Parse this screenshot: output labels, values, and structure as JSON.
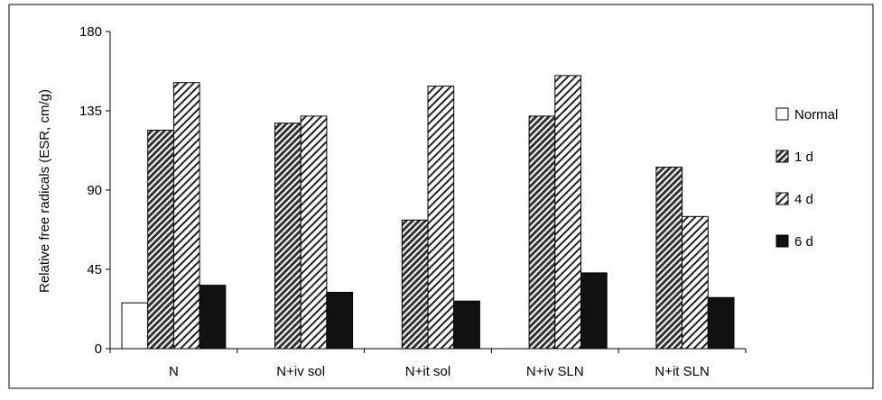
{
  "chart_data": {
    "type": "bar",
    "ylabel": "Relative free radicals (ESR, cm/g)",
    "xlabel": "",
    "ylim": [
      0,
      180
    ],
    "yticks": [
      0,
      45,
      90,
      135,
      180
    ],
    "grid": false,
    "legend_position": "right",
    "categories": [
      "N",
      "N+iv sol",
      "N+it sol",
      "N+iv SLN",
      "N+it SLN"
    ],
    "series": [
      {
        "name": "Normal",
        "pattern": "empty",
        "values": [
          26,
          null,
          null,
          null,
          null
        ]
      },
      {
        "name": "1 d",
        "pattern": "dense-diagonal",
        "values": [
          124,
          128,
          73,
          132,
          103
        ]
      },
      {
        "name": "4 d",
        "pattern": "sparse-diagonal",
        "values": [
          151,
          132,
          149,
          155,
          75
        ]
      },
      {
        "name": "6 d",
        "pattern": "solid",
        "values": [
          36,
          32,
          27,
          43,
          29
        ]
      }
    ]
  },
  "colors": {
    "solid": "#111111",
    "hatch": "#000000",
    "axis": "#000000"
  }
}
